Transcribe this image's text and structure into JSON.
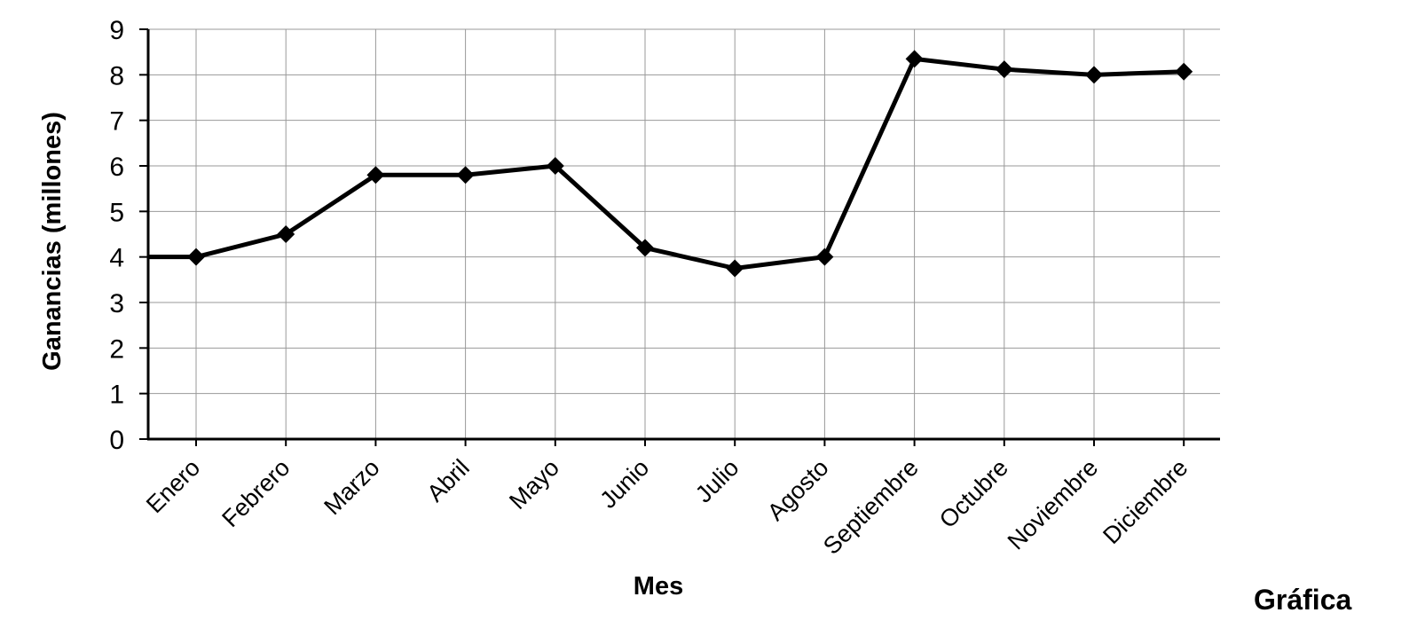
{
  "chart_data": {
    "type": "line",
    "categories": [
      "Enero",
      "Febrero",
      "Marzo",
      "Abril",
      "Mayo",
      "Junio",
      "Julio",
      "Agosto",
      "Septiembre",
      "Octubre",
      "Noviembre",
      "Diciembre"
    ],
    "series": [
      {
        "values": [
          4,
          4.5,
          5.8,
          5.8,
          6,
          4.2,
          3.75,
          4,
          8.35,
          8.12,
          8,
          8.07
        ]
      }
    ],
    "xlabel": "Mes",
    "ylabel": "Ganancias (millones)",
    "ylim": [
      0,
      9
    ],
    "yticks": [
      0,
      1,
      2,
      3,
      4,
      5,
      6,
      7,
      8,
      9
    ],
    "grid": true,
    "marker": "diamond",
    "line_color": "#000000",
    "grid_color": "#999999"
  },
  "caption": "Gráfica"
}
